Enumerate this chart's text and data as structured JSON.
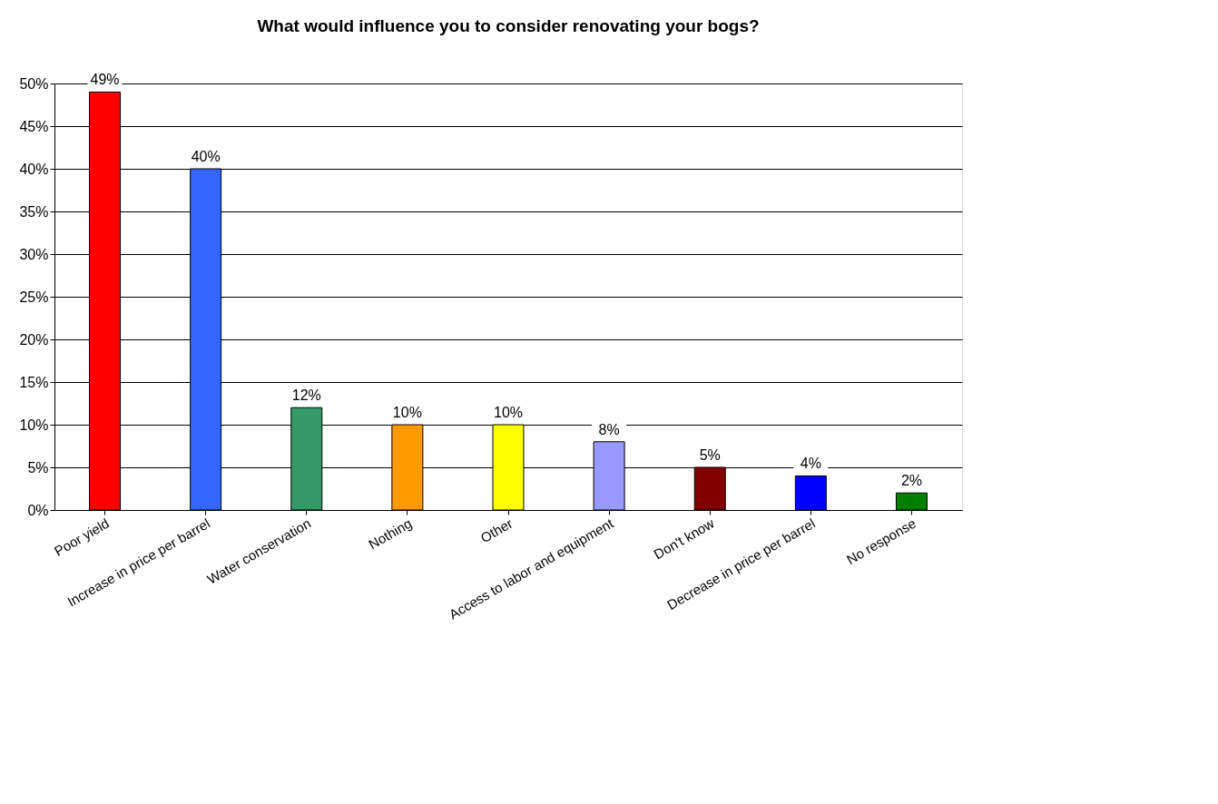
{
  "chart_data": {
    "type": "bar",
    "title": "What would influence you to consider renovating your bogs?",
    "categories": [
      "Poor yield",
      "Increase in price per barrel",
      "Water conservation",
      "Nothing",
      "Other",
      "Access to labor and equipment",
      "Don't know",
      "Decrease in price per barrel",
      "No response"
    ],
    "values": [
      49,
      40,
      12,
      10,
      10,
      8,
      5,
      4,
      2
    ],
    "colors": [
      "#ff0000",
      "#3366ff",
      "#339966",
      "#ff9900",
      "#ffff00",
      "#9999ff",
      "#800000",
      "#0000ff",
      "#008000"
    ],
    "value_labels": [
      "49%",
      "40%",
      "12%",
      "10%",
      "10%",
      "8%",
      "5%",
      "4%",
      "2%"
    ],
    "ylim": [
      0,
      50
    ],
    "yticks": [
      {
        "value": 0,
        "label": "0%"
      },
      {
        "value": 5,
        "label": "5%"
      },
      {
        "value": 10,
        "label": "10%"
      },
      {
        "value": 15,
        "label": "15%"
      },
      {
        "value": 20,
        "label": "20%"
      },
      {
        "value": 25,
        "label": "25%"
      },
      {
        "value": 30,
        "label": "30%"
      },
      {
        "value": 35,
        "label": "35%"
      },
      {
        "value": 40,
        "label": "40%"
      },
      {
        "value": 45,
        "label": "45%"
      },
      {
        "value": 50,
        "label": "50%"
      }
    ],
    "grid": "y"
  }
}
